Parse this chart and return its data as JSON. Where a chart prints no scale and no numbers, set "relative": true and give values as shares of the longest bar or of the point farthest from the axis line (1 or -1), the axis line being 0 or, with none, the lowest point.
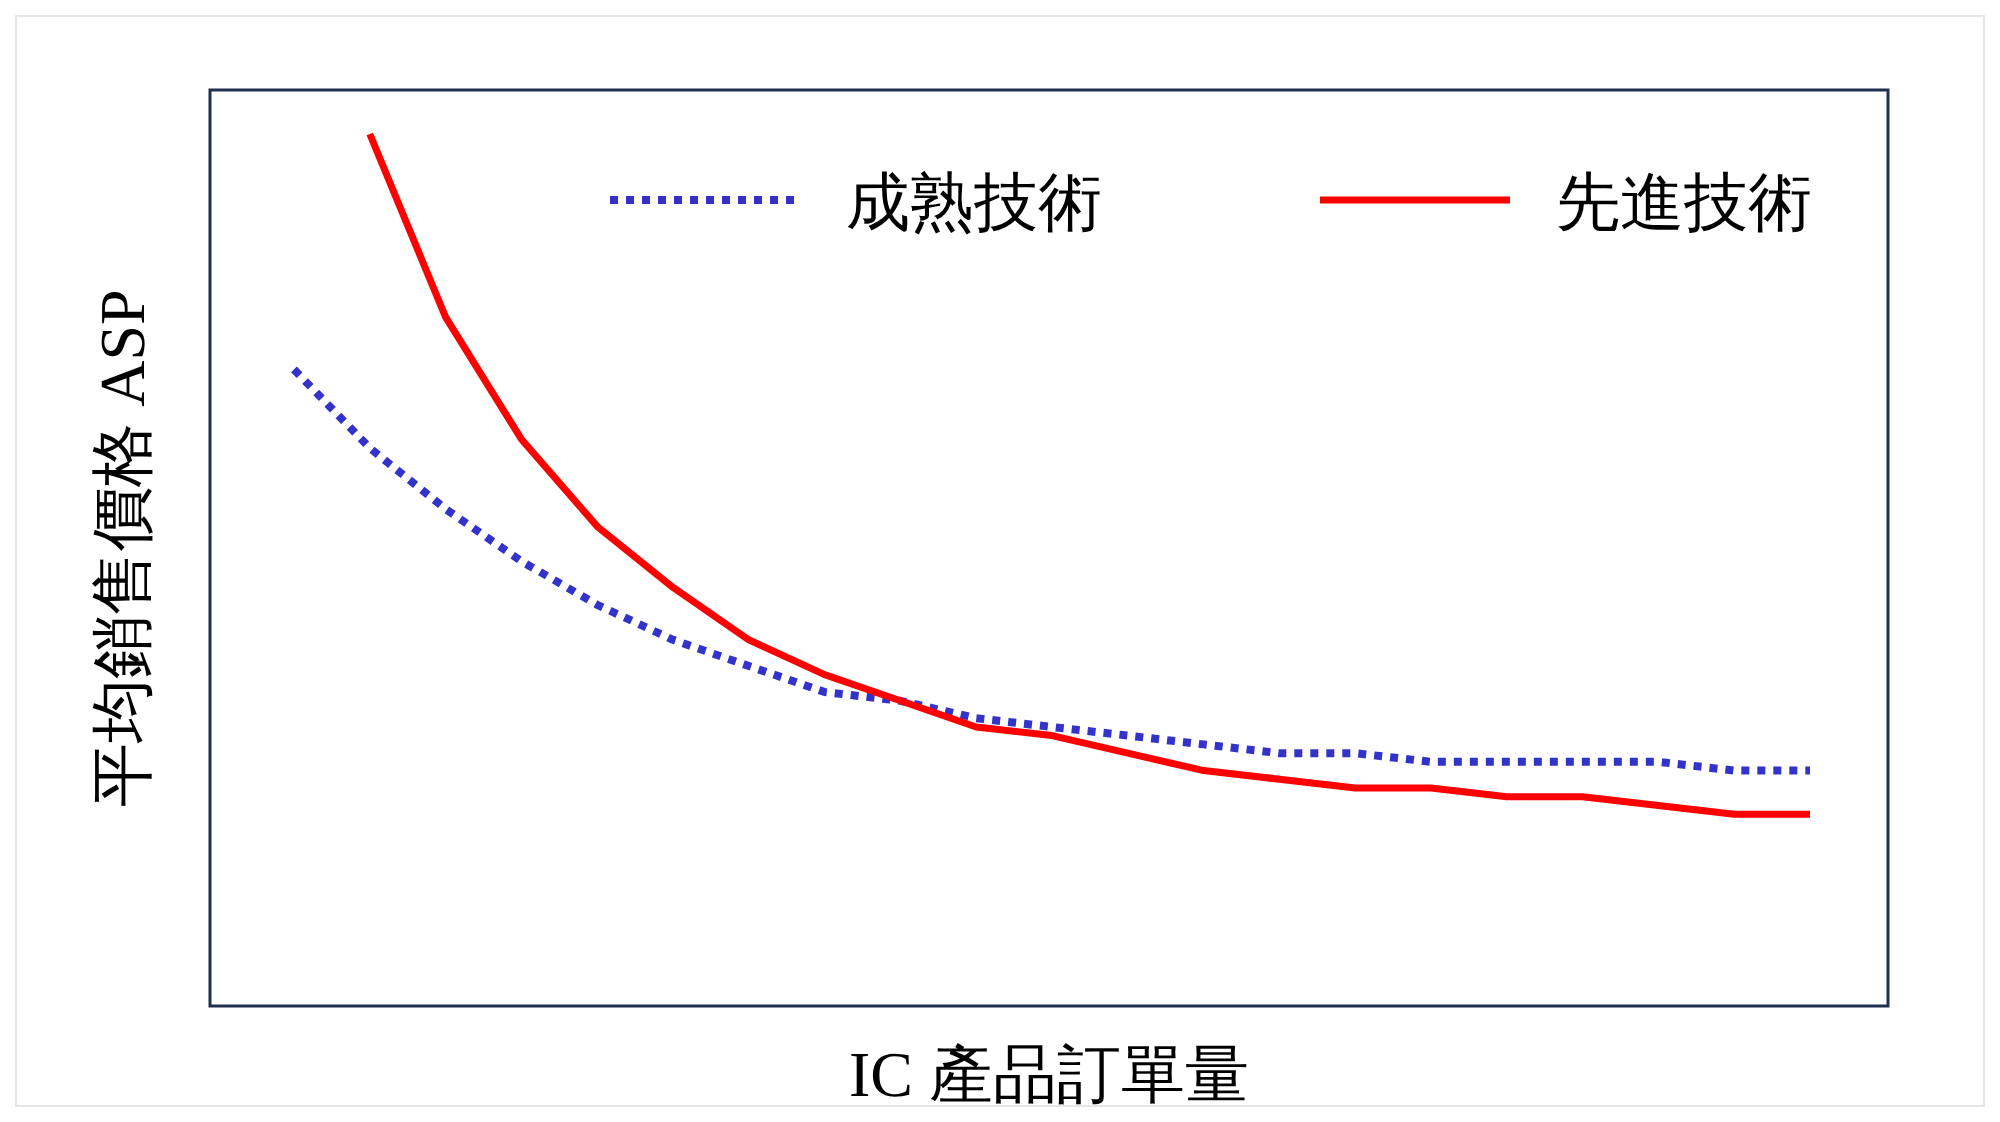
{
  "chart_data": {
    "type": "line",
    "relative": true,
    "xlabel": "IC 產品訂單量",
    "ylabel": "平均銷售價格 ASP",
    "legend": "top right",
    "categories": [
      null,
      null,
      null,
      null,
      null,
      null,
      null,
      null,
      null,
      null,
      null,
      null,
      null,
      null,
      null,
      null,
      null,
      null,
      null,
      null,
      null
    ],
    "series": [
      {
        "name": "成熟技術",
        "color": "#3333cc",
        "line_style": "dotted",
        "values": [
          0.73,
          0.64,
          0.57,
          0.51,
          0.46,
          0.42,
          0.39,
          0.36,
          0.35,
          0.33,
          0.32,
          0.31,
          0.3,
          0.29,
          0.29,
          0.28,
          0.28,
          0.28,
          0.28,
          0.27,
          0.27
        ]
      },
      {
        "name": "先進技術",
        "color": "#ff0000",
        "line_style": "solid",
        "values": [
          null,
          1.0,
          0.79,
          0.65,
          0.55,
          0.48,
          0.42,
          0.38,
          0.35,
          0.32,
          0.31,
          0.29,
          0.27,
          0.26,
          0.25,
          0.25,
          0.24,
          0.24,
          0.23,
          0.22,
          0.22
        ]
      }
    ]
  }
}
